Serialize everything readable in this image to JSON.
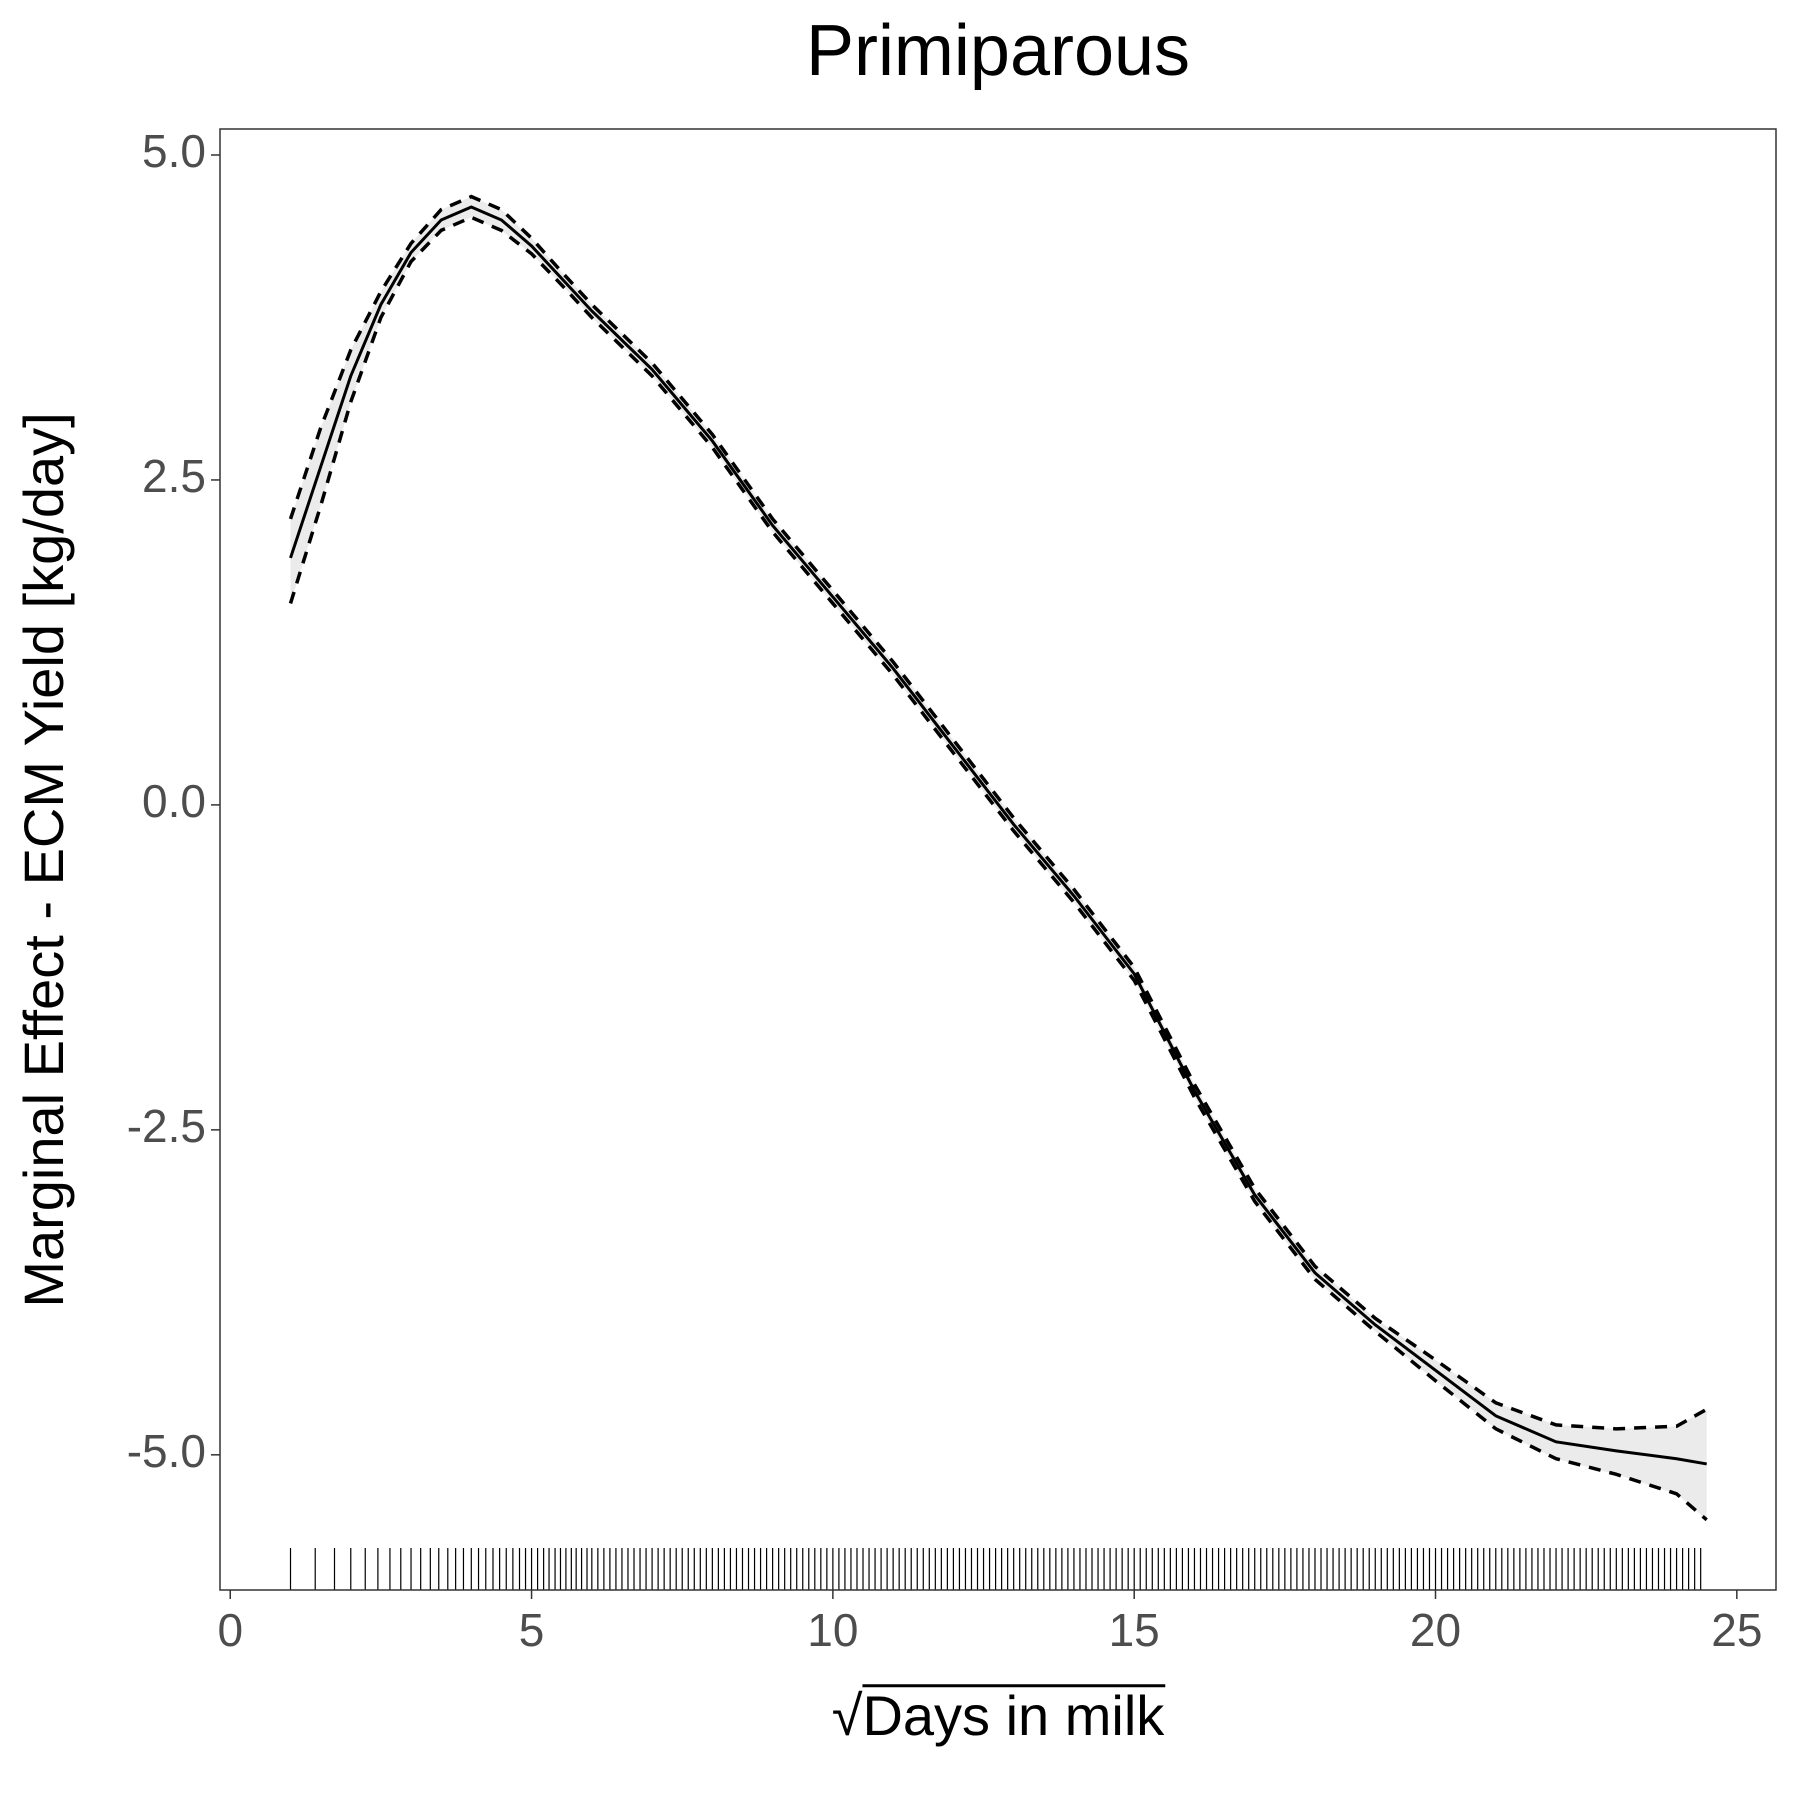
{
  "chart_data": {
    "type": "line",
    "title": "Primiparous",
    "xlabel": "√Days in milk",
    "ylabel": "Marginal Effect - ECM Yield [kg/day]",
    "xlim": [
      -0.17,
      25.65
    ],
    "ylim": [
      -6.04,
      5.2
    ],
    "xticks": [
      0,
      5,
      10,
      15,
      20,
      25
    ],
    "yticks": [
      {
        "value": -5,
        "label": "-5.0"
      },
      {
        "value": -2.5,
        "label": "-2.5"
      },
      {
        "value": 0,
        "label": "0.0"
      },
      {
        "value": 2.5,
        "label": "2.5"
      },
      {
        "value": 5,
        "label": "5.0"
      }
    ],
    "grid": false,
    "x": [
      1,
      1.5,
      2,
      2.5,
      3,
      3.5,
      4,
      4.5,
      5,
      5.5,
      6,
      7,
      8,
      9,
      10,
      11,
      12,
      13,
      14,
      15,
      16,
      17,
      18,
      19,
      20,
      21,
      22,
      23,
      24,
      24.5
    ],
    "band_color": "#ebebeb",
    "series": [
      {
        "color": "#000000",
        "style": "solid",
        "values": [
          1.9,
          2.6,
          3.3,
          3.85,
          4.25,
          4.5,
          4.6,
          4.5,
          4.3,
          4.05,
          3.8,
          3.35,
          2.8,
          2.15,
          1.6,
          1.05,
          0.45,
          -0.15,
          -0.7,
          -1.3,
          -2.2,
          -3.0,
          -3.6,
          -4.0,
          -4.35,
          -4.7,
          -4.9,
          -4.97,
          -5.03,
          -5.07
        ]
      },
      {
        "color": "#000000",
        "style": "dashed",
        "values": [
          2.2,
          2.9,
          3.5,
          3.95,
          4.32,
          4.58,
          4.68,
          4.58,
          4.36,
          4.1,
          3.85,
          3.4,
          2.85,
          2.2,
          1.65,
          1.1,
          0.5,
          -0.1,
          -0.65,
          -1.25,
          -2.15,
          -2.95,
          -3.55,
          -3.95,
          -4.27,
          -4.6,
          -4.77,
          -4.8,
          -4.78,
          -4.65
        ]
      },
      {
        "color": "#000000",
        "style": "dashed",
        "values": [
          1.55,
          2.3,
          3.1,
          3.75,
          4.18,
          4.42,
          4.52,
          4.42,
          4.24,
          4.0,
          3.75,
          3.3,
          2.75,
          2.1,
          1.55,
          1.0,
          0.4,
          -0.2,
          -0.75,
          -1.35,
          -2.25,
          -3.05,
          -3.65,
          -4.05,
          -4.43,
          -4.8,
          -5.03,
          -5.15,
          -5.3,
          -5.5
        ]
      }
    ],
    "rug": [
      1,
      1.41,
      1.73,
      2,
      2.24,
      2.45,
      2.65,
      2.83,
      3,
      3.16,
      3.32,
      3.46,
      3.61,
      3.74,
      3.87,
      4,
      4.12,
      4.24,
      4.36,
      4.47,
      4.58,
      4.69,
      4.8,
      4.9,
      5,
      5.1,
      5.2,
      5.29,
      5.39,
      5.48,
      5.57,
      5.66,
      5.74,
      5.83,
      5.92,
      6,
      6.1,
      6.2,
      6.3,
      6.4,
      6.5,
      6.6,
      6.7,
      6.8,
      6.9,
      7,
      7.1,
      7.2,
      7.3,
      7.4,
      7.5,
      7.6,
      7.7,
      7.8,
      7.9,
      8,
      8.1,
      8.2,
      8.3,
      8.4,
      8.5,
      8.6,
      8.7,
      8.8,
      8.9,
      9,
      9.1,
      9.2,
      9.3,
      9.4,
      9.5,
      9.6,
      9.7,
      9.8,
      9.9,
      10,
      10.1,
      10.2,
      10.3,
      10.4,
      10.5,
      10.6,
      10.7,
      10.8,
      10.9,
      11,
      11.1,
      11.2,
      11.3,
      11.4,
      11.5,
      11.6,
      11.7,
      11.8,
      11.9,
      12,
      12.1,
      12.2,
      12.3,
      12.4,
      12.5,
      12.6,
      12.7,
      12.8,
      12.9,
      13,
      13.1,
      13.2,
      13.3,
      13.4,
      13.5,
      13.6,
      13.7,
      13.8,
      13.9,
      14,
      14.1,
      14.2,
      14.3,
      14.4,
      14.5,
      14.6,
      14.7,
      14.8,
      14.9,
      15,
      15.1,
      15.2,
      15.3,
      15.4,
      15.5,
      15.6,
      15.7,
      15.8,
      15.9,
      16,
      16.1,
      16.2,
      16.3,
      16.4,
      16.5,
      16.6,
      16.7,
      16.8,
      16.9,
      17,
      17.1,
      17.2,
      17.3,
      17.4,
      17.5,
      17.6,
      17.7,
      17.8,
      17.9,
      18,
      18.1,
      18.2,
      18.3,
      18.4,
      18.5,
      18.6,
      18.7,
      18.8,
      18.9,
      19,
      19.1,
      19.2,
      19.3,
      19.4,
      19.5,
      19.6,
      19.7,
      19.8,
      19.9,
      20,
      20.1,
      20.2,
      20.3,
      20.4,
      20.5,
      20.6,
      20.7,
      20.8,
      20.9,
      21,
      21.1,
      21.2,
      21.3,
      21.4,
      21.5,
      21.6,
      21.7,
      21.8,
      21.9,
      22,
      22.1,
      22.2,
      22.3,
      22.4,
      22.5,
      22.6,
      22.7,
      22.8,
      22.9,
      23,
      23.1,
      23.2,
      23.3,
      23.4,
      23.5,
      23.6,
      23.7,
      23.8,
      23.9,
      24,
      24.1,
      24.2,
      24.3,
      24.4
    ]
  }
}
